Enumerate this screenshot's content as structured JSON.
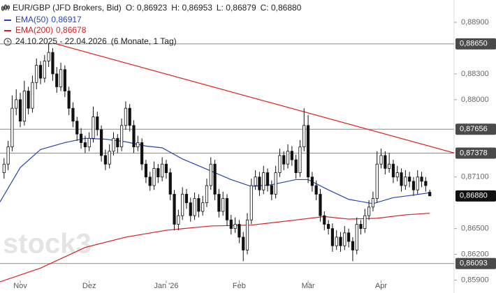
{
  "chart_data": {
    "type": "candlestick",
    "symbol": "EUR/GBP (JFD Brokers, Bid)",
    "ohlc_labels": [
      "O: 0,86923",
      "H: 0,86953",
      "L: 0,86879",
      "C: 0,86880"
    ],
    "range": "24.10.2025 - 22.04.2026",
    "period": "(6 Monate, 1 Tag)",
    "watermark": "stock3",
    "ylim": [
      0.8575,
      0.8916
    ],
    "xlim": [
      -1,
      111
    ],
    "yticks": [
      {
        "value": 0.889,
        "label": "0,88900"
      },
      {
        "value": 0.883,
        "label": "0,88300"
      },
      {
        "value": 0.88,
        "label": "0,88000"
      },
      {
        "value": 0.871,
        "label": "0,87100"
      },
      {
        "value": 0.865,
        "label": "0,86500"
      },
      {
        "value": 0.862,
        "label": "0,86200"
      },
      {
        "value": 0.859,
        "label": "0,85900"
      }
    ],
    "xticks": [
      {
        "value": 4,
        "label": "Nov"
      },
      {
        "value": 21,
        "label": "Dez"
      },
      {
        "value": 40,
        "label": "Jan '26"
      },
      {
        "value": 58,
        "label": "Feb"
      },
      {
        "value": 75,
        "label": "Mär"
      },
      {
        "value": 93,
        "label": "Apr"
      }
    ],
    "levels": [
      {
        "value": 0.8865,
        "label": "0,88650"
      },
      {
        "value": 0.87656,
        "label": "0,87656"
      },
      {
        "value": 0.87378,
        "label": "0,87378"
      },
      {
        "value": 0.86093,
        "label": "0,86093"
      }
    ],
    "last_price": {
      "value": 0.8688,
      "label": "0,86880"
    },
    "trendline": {
      "color": "#e02020",
      "x": [
        12,
        111
      ],
      "values": [
        0.8866,
        0.8738
      ]
    },
    "series": [
      {
        "name": "EMA(50)",
        "color": "#2546b4",
        "value_label": "0,86917",
        "x": [
          -1,
          4,
          9,
          15,
          20,
          25,
          30,
          35,
          39,
          44,
          51,
          56,
          61,
          66,
          72,
          75,
          80,
          85,
          91,
          96,
          101,
          105
        ],
        "values": [
          0.8681,
          0.8721,
          0.8742,
          0.875,
          0.8755,
          0.8754,
          0.8751,
          0.8746,
          0.8744,
          0.8731,
          0.8717,
          0.8707,
          0.8699,
          0.8701,
          0.8707,
          0.8707,
          0.8695,
          0.8684,
          0.8679,
          0.8686,
          0.8689,
          0.86917
        ]
      },
      {
        "name": "EMA(200)",
        "color": "#d42020",
        "value_label": "0,86678",
        "x": [
          -1,
          9,
          20,
          30,
          40,
          51,
          61,
          72,
          79,
          85,
          92,
          99,
          105
        ],
        "values": [
          0.8588,
          0.8604,
          0.8628,
          0.864,
          0.8648,
          0.8653,
          0.8654,
          0.866,
          0.8664,
          0.8661,
          0.8662,
          0.8666,
          0.86678
        ]
      }
    ],
    "candles": [
      [
        0.8715,
        0.8732,
        0.8708,
        0.8725
      ],
      [
        0.8725,
        0.8752,
        0.8718,
        0.8745
      ],
      [
        0.8745,
        0.8805,
        0.874,
        0.879
      ],
      [
        0.879,
        0.8812,
        0.8782,
        0.88
      ],
      [
        0.88,
        0.8808,
        0.8768,
        0.8775
      ],
      [
        0.8775,
        0.8822,
        0.877,
        0.881
      ],
      [
        0.881,
        0.8815,
        0.8783,
        0.879
      ],
      [
        0.879,
        0.8828,
        0.8785,
        0.882
      ],
      [
        0.882,
        0.8848,
        0.8812,
        0.884
      ],
      [
        0.884,
        0.8845,
        0.8818,
        0.8825
      ],
      [
        0.8825,
        0.8852,
        0.882,
        0.8845
      ],
      [
        0.8845,
        0.8866,
        0.8838,
        0.8855
      ],
      [
        0.8855,
        0.886,
        0.8822,
        0.883
      ],
      [
        0.883,
        0.8838,
        0.8808,
        0.8815
      ],
      [
        0.8815,
        0.8843,
        0.881,
        0.8835
      ],
      [
        0.8835,
        0.884,
        0.8803,
        0.881
      ],
      [
        0.881,
        0.8815,
        0.8782,
        0.879
      ],
      [
        0.879,
        0.8797,
        0.8768,
        0.8775
      ],
      [
        0.8775,
        0.878,
        0.8752,
        0.876
      ],
      [
        0.876,
        0.8767,
        0.8743,
        0.875
      ],
      [
        0.875,
        0.8758,
        0.8738,
        0.8745
      ],
      [
        0.8745,
        0.8762,
        0.874,
        0.8755
      ],
      [
        0.8755,
        0.8792,
        0.875,
        0.878
      ],
      [
        0.878,
        0.8786,
        0.8758,
        0.8765
      ],
      [
        0.8765,
        0.877,
        0.8728,
        0.8735
      ],
      [
        0.8735,
        0.8742,
        0.8718,
        0.8725
      ],
      [
        0.8725,
        0.8748,
        0.872,
        0.874
      ],
      [
        0.874,
        0.8762,
        0.8735,
        0.8755
      ],
      [
        0.8755,
        0.876,
        0.8738,
        0.8745
      ],
      [
        0.8745,
        0.8778,
        0.874,
        0.877
      ],
      [
        0.877,
        0.8798,
        0.8765,
        0.879
      ],
      [
        0.879,
        0.8795,
        0.8763,
        0.877
      ],
      [
        0.877,
        0.8776,
        0.8738,
        0.8745
      ],
      [
        0.8745,
        0.8758,
        0.874,
        0.875
      ],
      [
        0.875,
        0.8755,
        0.8718,
        0.8725
      ],
      [
        0.8725,
        0.873,
        0.8703,
        0.871
      ],
      [
        0.871,
        0.8716,
        0.8694,
        0.87
      ],
      [
        0.87,
        0.8728,
        0.8695,
        0.872
      ],
      [
        0.872,
        0.8725,
        0.8703,
        0.871
      ],
      [
        0.871,
        0.8733,
        0.8705,
        0.8725
      ],
      [
        0.8725,
        0.873,
        0.8708,
        0.8715
      ],
      [
        0.8715,
        0.872,
        0.8683,
        0.869
      ],
      [
        0.869,
        0.8695,
        0.8648,
        0.8655
      ],
      [
        0.8655,
        0.8672,
        0.8648,
        0.8665
      ],
      [
        0.8665,
        0.8698,
        0.866,
        0.869
      ],
      [
        0.869,
        0.8696,
        0.8673,
        0.868
      ],
      [
        0.868,
        0.8686,
        0.8658,
        0.8665
      ],
      [
        0.8665,
        0.8692,
        0.866,
        0.8685
      ],
      [
        0.8685,
        0.869,
        0.8663,
        0.867
      ],
      [
        0.867,
        0.8688,
        0.8665,
        0.868
      ],
      [
        0.868,
        0.8708,
        0.8675,
        0.87
      ],
      [
        0.87,
        0.8733,
        0.8695,
        0.8725
      ],
      [
        0.8725,
        0.873,
        0.8683,
        0.869
      ],
      [
        0.869,
        0.8696,
        0.8663,
        0.867
      ],
      [
        0.867,
        0.8693,
        0.8665,
        0.8685
      ],
      [
        0.8685,
        0.869,
        0.8653,
        0.866
      ],
      [
        0.866,
        0.8666,
        0.8643,
        0.865
      ],
      [
        0.865,
        0.8663,
        0.8645,
        0.8655
      ],
      [
        0.8655,
        0.866,
        0.8633,
        0.864
      ],
      [
        0.864,
        0.8646,
        0.8612,
        0.8625
      ],
      [
        0.8625,
        0.8668,
        0.862,
        0.866
      ],
      [
        0.866,
        0.8708,
        0.8655,
        0.87
      ],
      [
        0.87,
        0.8718,
        0.8695,
        0.871
      ],
      [
        0.871,
        0.8716,
        0.8688,
        0.8695
      ],
      [
        0.8695,
        0.8723,
        0.869,
        0.8715
      ],
      [
        0.8715,
        0.872,
        0.8693,
        0.87
      ],
      [
        0.87,
        0.8706,
        0.8683,
        0.869
      ],
      [
        0.869,
        0.8723,
        0.8685,
        0.8715
      ],
      [
        0.8715,
        0.8743,
        0.871,
        0.8735
      ],
      [
        0.8735,
        0.874,
        0.8718,
        0.8725
      ],
      [
        0.8725,
        0.8748,
        0.872,
        0.874
      ],
      [
        0.874,
        0.8746,
        0.8723,
        0.873
      ],
      [
        0.873,
        0.8736,
        0.8708,
        0.8715
      ],
      [
        0.8715,
        0.8753,
        0.871,
        0.8745
      ],
      [
        0.8745,
        0.879,
        0.874,
        0.877
      ],
      [
        0.877,
        0.8782,
        0.8703,
        0.871
      ],
      [
        0.871,
        0.8716,
        0.8693,
        0.87
      ],
      [
        0.87,
        0.8706,
        0.8683,
        0.869
      ],
      [
        0.869,
        0.8696,
        0.8658,
        0.8665
      ],
      [
        0.8665,
        0.867,
        0.8648,
        0.8655
      ],
      [
        0.8655,
        0.866,
        0.8643,
        0.865
      ],
      [
        0.865,
        0.8656,
        0.8623,
        0.863
      ],
      [
        0.863,
        0.8648,
        0.8625,
        0.864
      ],
      [
        0.864,
        0.8646,
        0.8623,
        0.863
      ],
      [
        0.863,
        0.8653,
        0.8625,
        0.8645
      ],
      [
        0.8645,
        0.865,
        0.8628,
        0.8635
      ],
      [
        0.8635,
        0.864,
        0.8612,
        0.8625
      ],
      [
        0.8625,
        0.8663,
        0.862,
        0.8655
      ],
      [
        0.8655,
        0.866,
        0.8643,
        0.865
      ],
      [
        0.865,
        0.8673,
        0.8645,
        0.8665
      ],
      [
        0.8665,
        0.8683,
        0.866,
        0.8675
      ],
      [
        0.8675,
        0.8693,
        0.867,
        0.8685
      ],
      [
        0.8685,
        0.874,
        0.868,
        0.8725
      ],
      [
        0.8725,
        0.8743,
        0.872,
        0.8735
      ],
      [
        0.8735,
        0.874,
        0.8713,
        0.872
      ],
      [
        0.872,
        0.8738,
        0.8715,
        0.8725
      ],
      [
        0.8725,
        0.873,
        0.8703,
        0.871
      ],
      [
        0.871,
        0.8723,
        0.8705,
        0.8715
      ],
      [
        0.8715,
        0.872,
        0.8693,
        0.87
      ],
      [
        0.87,
        0.8718,
        0.8695,
        0.871
      ],
      [
        0.871,
        0.8716,
        0.8698,
        0.8705
      ],
      [
        0.8705,
        0.871,
        0.8688,
        0.8695
      ],
      [
        0.8695,
        0.8718,
        0.869,
        0.871
      ],
      [
        0.871,
        0.8716,
        0.8698,
        0.8705
      ],
      [
        0.8705,
        0.871,
        0.8693,
        0.87
      ],
      [
        0.86923,
        0.86953,
        0.86879,
        0.8688
      ]
    ]
  }
}
